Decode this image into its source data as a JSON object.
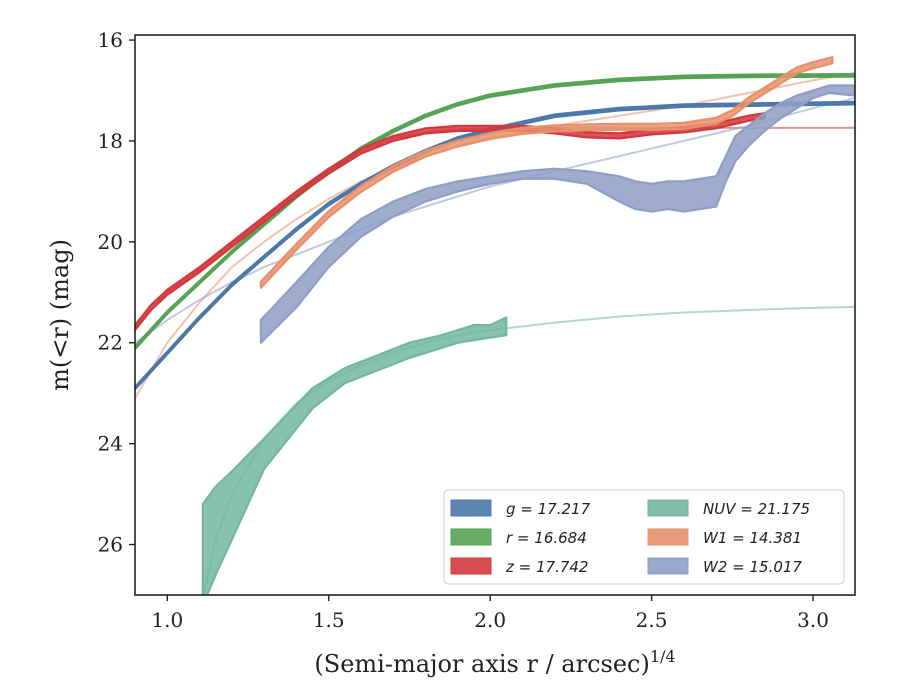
{
  "chart_data": {
    "type": "line",
    "xlabel": "(Semi-major axis r / arcsec)",
    "xlabel_superscript": "1/4",
    "ylabel": "m(<r) (mag)",
    "xlim": [
      0.9,
      3.13
    ],
    "ylim": [
      27.0,
      15.9
    ],
    "y_inverted": true,
    "x_ticks": [
      "1.0",
      "1.5",
      "2.0",
      "2.5",
      "3.0"
    ],
    "y_ticks": [
      "16",
      "18",
      "20",
      "22",
      "24",
      "26"
    ],
    "grid": false,
    "legend_position": "lower-right",
    "legend": [
      {
        "label": "g = 17.217",
        "color": "#4c78a8"
      },
      {
        "label": "r = 16.684",
        "color": "#55a354"
      },
      {
        "label": "z = 17.742",
        "color": "#d2383e"
      },
      {
        "label": "NUV = 21.175",
        "color": "#72b79e"
      },
      {
        "label": "W1 = 14.381",
        "color": "#e8906c"
      },
      {
        "label": "W2 = 15.017",
        "color": "#8e9ec6"
      }
    ],
    "series": [
      {
        "name": "g = 17.217",
        "color": "#4c78a8",
        "band_width": 0.05,
        "x": [
          0.9,
          1.0,
          1.1,
          1.2,
          1.3,
          1.4,
          1.5,
          1.6,
          1.7,
          1.8,
          1.9,
          2.0,
          2.2,
          2.4,
          2.6,
          2.8,
          3.13
        ],
        "y": [
          22.9,
          22.2,
          21.5,
          20.85,
          20.3,
          19.75,
          19.25,
          18.85,
          18.5,
          18.2,
          17.95,
          17.78,
          17.5,
          17.37,
          17.3,
          17.28,
          17.25
        ]
      },
      {
        "name": "r = 16.684",
        "color": "#55a354",
        "band_width": 0.05,
        "x": [
          0.9,
          1.0,
          1.1,
          1.2,
          1.3,
          1.4,
          1.5,
          1.6,
          1.7,
          1.8,
          1.9,
          2.0,
          2.2,
          2.4,
          2.6,
          2.8,
          3.13
        ],
        "y": [
          22.1,
          21.4,
          20.8,
          20.2,
          19.65,
          19.1,
          18.6,
          18.15,
          17.8,
          17.5,
          17.27,
          17.1,
          16.9,
          16.79,
          16.73,
          16.71,
          16.7
        ]
      },
      {
        "name": "z = 17.742",
        "color": "#d2383e",
        "band_width": 0.1,
        "x": [
          0.9,
          0.95,
          1.0,
          1.1,
          1.2,
          1.3,
          1.4,
          1.5,
          1.6,
          1.7,
          1.8,
          1.9,
          2.0,
          2.1,
          2.2,
          2.3,
          2.4,
          2.5,
          2.6,
          2.7,
          2.8,
          2.85
        ],
        "y": [
          21.7,
          21.3,
          21.0,
          20.55,
          20.05,
          19.55,
          19.05,
          18.6,
          18.2,
          17.95,
          17.8,
          17.75,
          17.75,
          17.75,
          17.8,
          17.88,
          17.9,
          17.82,
          17.78,
          17.7,
          17.55,
          17.5
        ]
      },
      {
        "name": "NUV = 21.175",
        "color": "#72b79e",
        "x": [
          1.11,
          1.15,
          1.2,
          1.3,
          1.45,
          1.55,
          1.65,
          1.75,
          1.85,
          1.9,
          1.95,
          2.0,
          2.05
        ],
        "lo": [
          25.2,
          24.85,
          24.55,
          23.9,
          22.9,
          22.5,
          22.25,
          22.0,
          21.85,
          21.75,
          21.65,
          21.65,
          21.5
        ],
        "hi": [
          27.2,
          26.6,
          25.9,
          24.5,
          23.3,
          22.8,
          22.55,
          22.3,
          22.1,
          22.0,
          21.95,
          21.9,
          21.85
        ]
      },
      {
        "name": "W1 = 14.381",
        "color": "#e8906c",
        "band_width": 0.12,
        "x": [
          1.29,
          1.4,
          1.5,
          1.6,
          1.7,
          1.8,
          1.9,
          2.0,
          2.1,
          2.2,
          2.3,
          2.4,
          2.5,
          2.6,
          2.7,
          2.75,
          2.8,
          2.85,
          2.9,
          2.95,
          3.0,
          3.06
        ],
        "y": [
          20.85,
          20.1,
          19.45,
          18.95,
          18.55,
          18.25,
          18.05,
          17.9,
          17.8,
          17.75,
          17.73,
          17.72,
          17.72,
          17.7,
          17.6,
          17.45,
          17.2,
          17.0,
          16.8,
          16.6,
          16.5,
          16.4
        ]
      },
      {
        "name": "W2 = 15.017",
        "color": "#8e9ec6",
        "x": [
          1.29,
          1.4,
          1.5,
          1.6,
          1.7,
          1.8,
          1.9,
          2.0,
          2.1,
          2.2,
          2.3,
          2.4,
          2.45,
          2.5,
          2.55,
          2.6,
          2.65,
          2.7,
          2.73,
          2.76,
          2.8,
          2.85,
          2.9,
          2.95,
          3.0,
          3.05,
          3.13
        ],
        "lo": [
          21.55,
          20.8,
          20.1,
          19.55,
          19.2,
          18.95,
          18.8,
          18.7,
          18.6,
          18.55,
          18.6,
          18.7,
          18.8,
          18.85,
          18.8,
          18.8,
          18.75,
          18.7,
          18.3,
          17.9,
          17.7,
          17.45,
          17.25,
          17.1,
          17.0,
          16.9,
          16.9
        ],
        "hi": [
          22.0,
          21.3,
          20.5,
          19.9,
          19.5,
          19.2,
          19.0,
          18.85,
          18.75,
          18.75,
          18.85,
          19.2,
          19.35,
          19.4,
          19.35,
          19.4,
          19.35,
          19.3,
          18.8,
          18.4,
          18.1,
          17.8,
          17.55,
          17.35,
          17.15,
          17.05,
          17.1
        ]
      }
    ],
    "model_curves": [
      {
        "color": "#4c78a8",
        "x": [
          0.9,
          1.0,
          1.1,
          1.2,
          1.3,
          1.4,
          1.5,
          1.6,
          1.7,
          1.8,
          1.9,
          2.0,
          2.2,
          2.4,
          2.6,
          2.8,
          3.13
        ],
        "y": [
          22.9,
          22.2,
          21.5,
          20.85,
          20.3,
          19.75,
          19.25,
          18.85,
          18.5,
          18.2,
          17.95,
          17.78,
          17.5,
          17.37,
          17.3,
          17.28,
          17.25
        ]
      },
      {
        "color": "#55a354",
        "x": [
          0.9,
          1.0,
          1.1,
          1.2,
          1.3,
          1.4,
          1.5,
          1.6,
          1.7,
          1.8,
          1.9,
          2.0,
          2.2,
          2.4,
          2.6,
          2.8,
          3.13
        ],
        "y": [
          22.1,
          21.4,
          20.8,
          20.2,
          19.65,
          19.1,
          18.6,
          18.15,
          17.8,
          17.5,
          17.27,
          17.1,
          16.9,
          16.79,
          16.73,
          16.71,
          16.7
        ]
      },
      {
        "color": "#d2383e",
        "x": [
          0.9,
          1.0,
          1.1,
          1.2,
          1.3,
          1.4,
          1.5,
          1.6,
          1.7,
          1.8,
          1.9,
          2.0,
          2.2,
          2.6,
          3.13
        ],
        "y": [
          21.7,
          21.0,
          20.55,
          20.05,
          19.55,
          19.05,
          18.6,
          18.2,
          17.95,
          17.82,
          17.77,
          17.75,
          17.74,
          17.742,
          17.742
        ]
      },
      {
        "color": "#72b79e",
        "x": [
          1.11,
          1.15,
          1.2,
          1.3,
          1.4,
          1.5,
          1.6,
          1.7,
          1.8,
          1.9,
          2.0,
          2.2,
          2.4,
          2.6,
          2.8,
          3.0,
          3.13
        ],
        "y": [
          27.1,
          25.9,
          25.0,
          23.9,
          23.2,
          22.75,
          22.45,
          22.2,
          22.0,
          21.85,
          21.75,
          21.6,
          21.48,
          21.4,
          21.35,
          21.31,
          21.29
        ]
      },
      {
        "color": "#e8906c",
        "x": [
          0.9,
          1.0,
          1.1,
          1.2,
          1.3,
          1.4,
          1.5,
          1.6,
          1.7,
          1.8,
          1.9,
          2.0,
          2.2,
          2.4,
          2.6,
          2.8,
          3.0,
          3.13
        ],
        "y": [
          23.1,
          22.0,
          21.2,
          20.5,
          20.0,
          19.55,
          19.15,
          18.8,
          18.55,
          18.3,
          18.1,
          17.95,
          17.7,
          17.5,
          17.3,
          17.05,
          16.8,
          16.65
        ]
      },
      {
        "color": "#8e9ec6",
        "x": [
          0.9,
          1.0,
          1.1,
          1.2,
          1.3,
          1.4,
          1.5,
          1.6,
          1.7,
          1.8,
          1.9,
          2.0,
          2.2,
          2.4,
          2.6,
          2.8,
          3.0,
          3.13
        ],
        "y": [
          22.0,
          21.55,
          21.15,
          20.8,
          20.5,
          20.25,
          20.0,
          19.75,
          19.5,
          19.3,
          19.1,
          18.9,
          18.6,
          18.3,
          18.0,
          17.7,
          17.35,
          17.15
        ]
      }
    ]
  }
}
